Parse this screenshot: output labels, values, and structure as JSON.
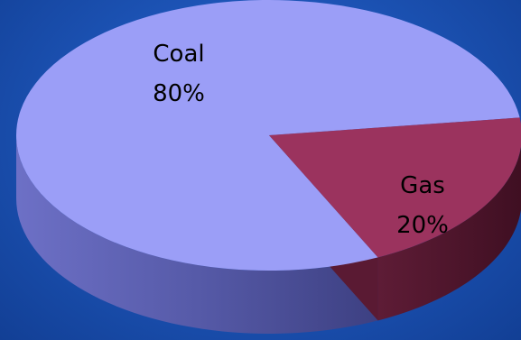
{
  "chart_data": {
    "type": "pie",
    "three_d": true,
    "title": "",
    "legend": "none",
    "slices": [
      {
        "name": "Coal",
        "value": 80,
        "label": "80%",
        "color": "#9b9ef7",
        "side_color": "#6f72c4"
      },
      {
        "name": "Gas",
        "value": 20,
        "label": "20%",
        "color": "#9b335e",
        "side_color": "#5a1a33"
      }
    ]
  },
  "colors": {
    "background": "#1d55b8"
  }
}
